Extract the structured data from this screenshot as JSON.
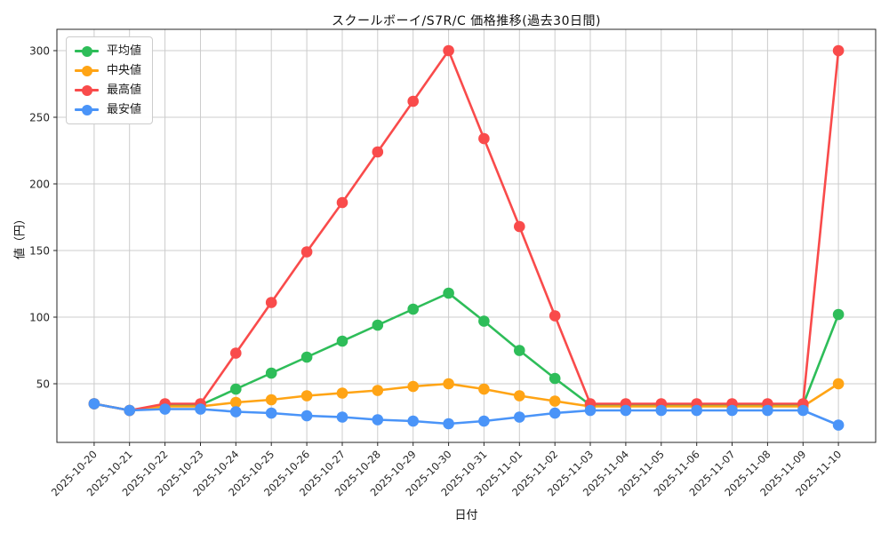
{
  "chart_data": {
    "type": "line",
    "title": "スクールボーイ/S7R/C 価格推移(過去30日間)",
    "xlabel": "日付",
    "ylabel": "値（円）",
    "categories": [
      "2025-10-20",
      "2025-10-21",
      "2025-10-22",
      "2025-10-23",
      "2025-10-24",
      "2025-10-25",
      "2025-10-26",
      "2025-10-27",
      "2025-10-28",
      "2025-10-29",
      "2025-10-30",
      "2025-10-31",
      "2025-11-01",
      "2025-11-02",
      "2025-11-03",
      "2025-11-04",
      "2025-11-05",
      "2025-11-06",
      "2025-11-07",
      "2025-11-08",
      "2025-11-09",
      "2025-11-10"
    ],
    "series": [
      {
        "key": "average",
        "name": "平均値",
        "color": "#2EBD59",
        "values": [
          35,
          30,
          34,
          34,
          46,
          58,
          70,
          82,
          94,
          106,
          118,
          97,
          75,
          54,
          34,
          34,
          34,
          34,
          34,
          34,
          34,
          102
        ]
      },
      {
        "key": "median",
        "name": "中央値",
        "color": "#FFA415",
        "values": [
          35,
          30,
          33,
          33,
          36,
          38,
          41,
          43,
          45,
          48,
          50,
          46,
          41,
          37,
          33,
          33,
          33,
          33,
          33,
          33,
          33,
          50
        ]
      },
      {
        "key": "max",
        "name": "最高値",
        "color": "#F94B4B",
        "values": [
          35,
          30,
          35,
          35,
          73,
          111,
          149,
          186,
          224,
          262,
          300,
          234,
          168,
          101,
          35,
          35,
          35,
          35,
          35,
          35,
          35,
          300
        ]
      },
      {
        "key": "min",
        "name": "最安値",
        "color": "#4A94F8",
        "values": [
          35,
          30,
          31,
          31,
          29,
          28,
          26,
          25,
          23,
          22,
          20,
          22,
          25,
          28,
          30,
          30,
          30,
          30,
          30,
          30,
          30,
          19
        ]
      }
    ],
    "yticks": [
      50,
      100,
      150,
      200,
      250,
      300
    ],
    "ylim": [
      6,
      316
    ],
    "grid": true,
    "legend_position": "upper-left",
    "grid_color": "#cccccc",
    "axis_color": "#262626",
    "text_color": "#262626",
    "background_color": "#ffffff"
  }
}
